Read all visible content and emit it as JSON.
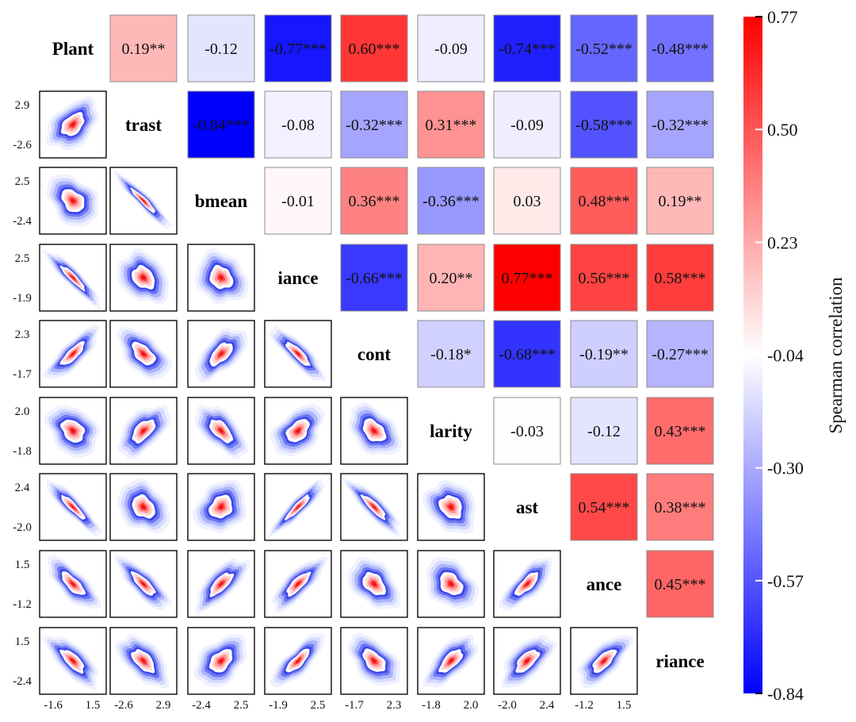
{
  "chart_data": {
    "type": "correlation_matrix",
    "method": "spearman",
    "variables": [
      "Plant",
      "trast",
      "bmean",
      "iance",
      "cont",
      "larity",
      "ast",
      "ance",
      "riance"
    ],
    "upper_triangle": [
      [
        "0.19**",
        "-0.12",
        "-0.77***",
        "0.60***",
        "-0.09",
        "-0.74***",
        "-0.52***",
        "-0.48***"
      ],
      [
        "-0.84***",
        "-0.08",
        "-0.32***",
        "0.31***",
        "-0.09",
        "-0.58***",
        "-0.32***"
      ],
      [
        "-0.01",
        "0.36***",
        "-0.36***",
        "0.03",
        "0.48***",
        "0.19**"
      ],
      [
        "-0.66***",
        "0.20**",
        "0.77***",
        "0.56***",
        "0.58***"
      ],
      [
        "-0.18*",
        "-0.68***",
        "-0.19**",
        "-0.27***"
      ],
      [
        "-0.03",
        "-0.12",
        "0.43***"
      ],
      [
        "0.54***",
        "0.38***"
      ],
      [
        "0.45***"
      ]
    ],
    "axis_ticks": {
      "x": [
        [
          "-1.6",
          "1.5"
        ],
        [
          "-2.6",
          "2.9"
        ],
        [
          "-2.4",
          "2.5"
        ],
        [
          "-1.9",
          "2.5"
        ],
        [
          "-1.7",
          "2.3"
        ],
        [
          "-1.8",
          "2.0"
        ],
        [
          "-2.0",
          "2.4"
        ],
        [
          "-1.2",
          "1.5"
        ]
      ],
      "y": [
        [
          "2.9",
          "-2.6"
        ],
        [
          "2.5",
          "-2.4"
        ],
        [
          "2.5",
          "-1.9"
        ],
        [
          "2.3",
          "-1.7"
        ],
        [
          "2.0",
          "-1.8"
        ],
        [
          "2.4",
          "-2.0"
        ],
        [
          "1.5",
          "-1.2"
        ],
        [
          "1.5",
          "-2.4"
        ]
      ]
    },
    "colorbar": {
      "label": "Spearman correlation",
      "min": -0.84,
      "max": 0.77,
      "tick_labels": [
        "0.77",
        "0.50",
        "0.23",
        "-0.04",
        "-0.30",
        "-0.57",
        "-0.84"
      ],
      "low_color": "#0000ff",
      "mid_color": "#ffffff",
      "high_color": "#ff0000"
    }
  }
}
